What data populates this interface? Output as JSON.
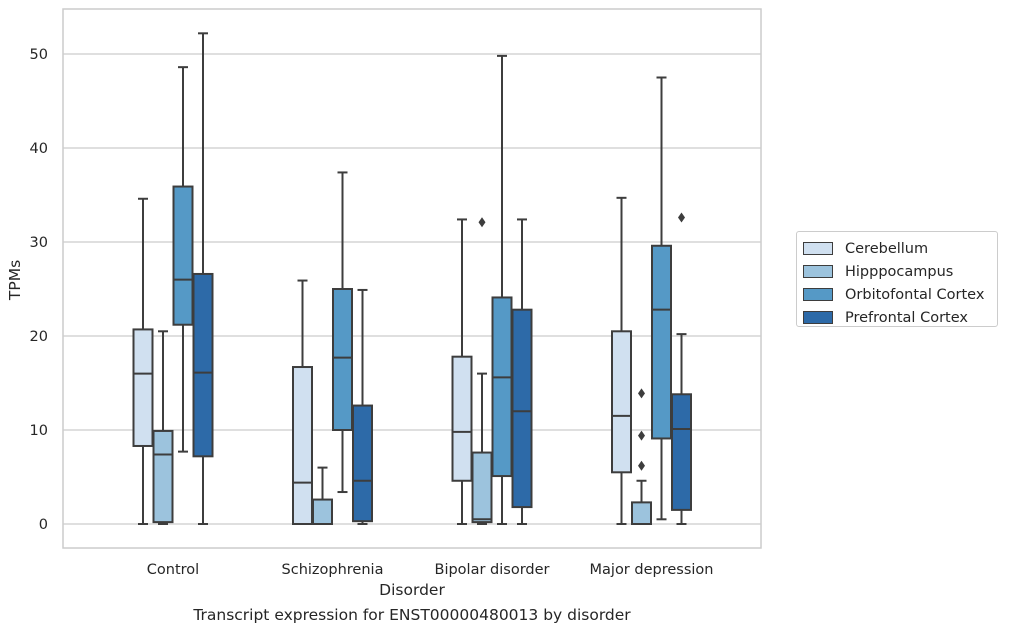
{
  "chart_data": {
    "type": "box",
    "xlabel": "Disorder",
    "ylabel": "TPMs",
    "caption": "Transcript expression for ENST00000480013 by disorder",
    "ylim": [
      -2.5,
      55
    ],
    "yticks": [
      0,
      10,
      20,
      30,
      40,
      50
    ],
    "grid": "horizontal",
    "legend_position": "right",
    "categories": [
      "Control",
      "Schizophrenia",
      "Bipolar disorder",
      "Major depression"
    ],
    "series": [
      {
        "name": "Cerebellum",
        "color": "#d0e0f0",
        "boxes": [
          {
            "whisker_low": 0,
            "q1": 8.3,
            "median": 16.0,
            "q3": 20.7,
            "whisker_high": 34.6,
            "outliers": []
          },
          {
            "whisker_low": 0,
            "q1": 0,
            "median": 4.4,
            "q3": 16.7,
            "whisker_high": 25.9,
            "outliers": []
          },
          {
            "whisker_low": 0,
            "q1": 4.6,
            "median": 9.8,
            "q3": 17.8,
            "whisker_high": 32.4,
            "outliers": []
          },
          {
            "whisker_low": 0,
            "q1": 5.5,
            "median": 11.5,
            "q3": 20.5,
            "whisker_high": 34.7,
            "outliers": []
          }
        ]
      },
      {
        "name": "Hipppocampus",
        "color": "#9cc3dd",
        "boxes": [
          {
            "whisker_low": 0,
            "q1": 0.2,
            "median": 7.4,
            "q3": 9.9,
            "whisker_high": 20.5,
            "outliers": []
          },
          {
            "whisker_low": 0,
            "q1": 0,
            "median": 0,
            "q3": 2.6,
            "whisker_high": 6.0,
            "outliers": []
          },
          {
            "whisker_low": 0,
            "q1": 0.2,
            "median": 0.5,
            "q3": 7.6,
            "whisker_high": 16.0,
            "outliers": [
              32.1
            ]
          },
          {
            "whisker_low": 0,
            "q1": 0,
            "median": 0,
            "q3": 2.3,
            "whisker_high": 4.6,
            "outliers": [
              6.2,
              9.4,
              13.9
            ]
          }
        ]
      },
      {
        "name": "Orbitofontal Cortex",
        "color": "#5599c6",
        "boxes": [
          {
            "whisker_low": 7.7,
            "q1": 21.2,
            "median": 26.0,
            "q3": 35.9,
            "whisker_high": 48.6,
            "outliers": []
          },
          {
            "whisker_low": 3.4,
            "q1": 10.0,
            "median": 17.7,
            "q3": 25.0,
            "whisker_high": 37.4,
            "outliers": []
          },
          {
            "whisker_low": 0,
            "q1": 5.1,
            "median": 15.6,
            "q3": 24.1,
            "whisker_high": 49.8,
            "outliers": []
          },
          {
            "whisker_low": 0.5,
            "q1": 9.1,
            "median": 22.8,
            "q3": 29.6,
            "whisker_high": 47.5,
            "outliers": []
          }
        ]
      },
      {
        "name": "Prefrontal Cortex",
        "color": "#2d6aa8",
        "boxes": [
          {
            "whisker_low": 0,
            "q1": 7.2,
            "median": 16.1,
            "q3": 26.6,
            "whisker_high": 52.2,
            "outliers": []
          },
          {
            "whisker_low": 0,
            "q1": 0.3,
            "median": 4.6,
            "q3": 12.6,
            "whisker_high": 24.9,
            "outliers": []
          },
          {
            "whisker_low": 0,
            "q1": 1.8,
            "median": 12.0,
            "q3": 22.8,
            "whisker_high": 32.4,
            "outliers": []
          },
          {
            "whisker_low": 0,
            "q1": 1.5,
            "median": 10.1,
            "q3": 13.8,
            "whisker_high": 20.2,
            "outliers": [
              32.6
            ]
          }
        ]
      }
    ]
  }
}
